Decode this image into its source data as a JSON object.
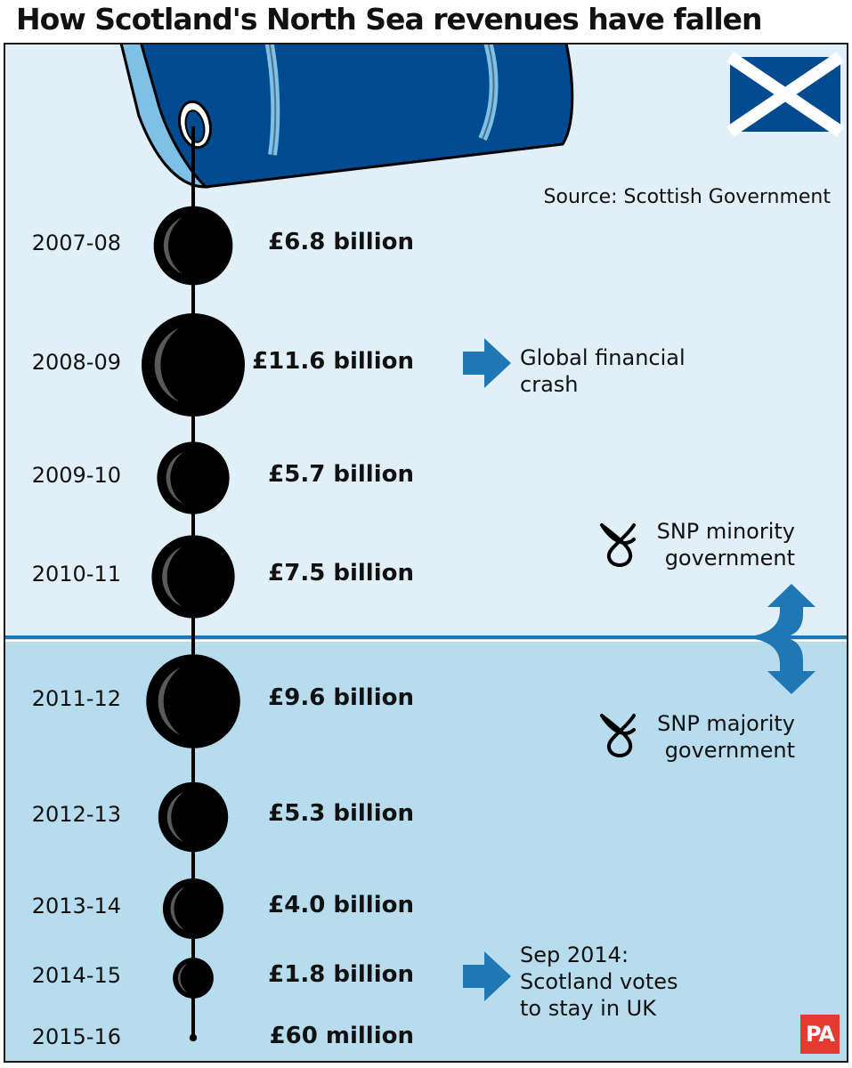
{
  "title": "How Scotland's North Sea revenues have fallen",
  "source": "Source: Scottish Government",
  "logo": "PA",
  "colors": {
    "upper_bg": "#e0eff8",
    "lower_bg": "#b6dcee",
    "barrel": "#004a8f",
    "barrel_light": "#7fc0e6",
    "arrow": "#1f78b4",
    "oil": "#000000",
    "logo": "#e53a2f"
  },
  "icons": [
    "oil-barrel-icon",
    "scotland-flag-icon",
    "snp-logo-icon",
    "arrow-right-icon",
    "arrow-up-icon",
    "arrow-down-icon"
  ],
  "chart_data": {
    "type": "bubble",
    "unit": "£ billion",
    "categories": [
      "2007-08",
      "2008-09",
      "2009-10",
      "2010-11",
      "2011-12",
      "2012-13",
      "2013-14",
      "2014-15",
      "2015-16"
    ],
    "values": [
      6.8,
      11.6,
      5.7,
      7.5,
      9.6,
      5.3,
      4.0,
      1.8,
      0.06
    ],
    "labels": [
      "£6.8 billion",
      "£11.6 billion",
      "£5.7 billion",
      "£7.5 billion",
      "£9.6 billion",
      "£5.3 billion",
      "£4.0 billion",
      "£1.8 billion",
      "£60 million"
    ]
  },
  "annotations": {
    "crash": {
      "line1": "Global financial",
      "line2": "crash"
    },
    "minority": {
      "line1": "SNP minority",
      "line2": "government"
    },
    "majority": {
      "line1": "SNP majority",
      "line2": "government"
    },
    "referendum": {
      "line1": "Sep 2014:",
      "line2": "Scotland votes",
      "line3": "to stay in UK"
    }
  }
}
